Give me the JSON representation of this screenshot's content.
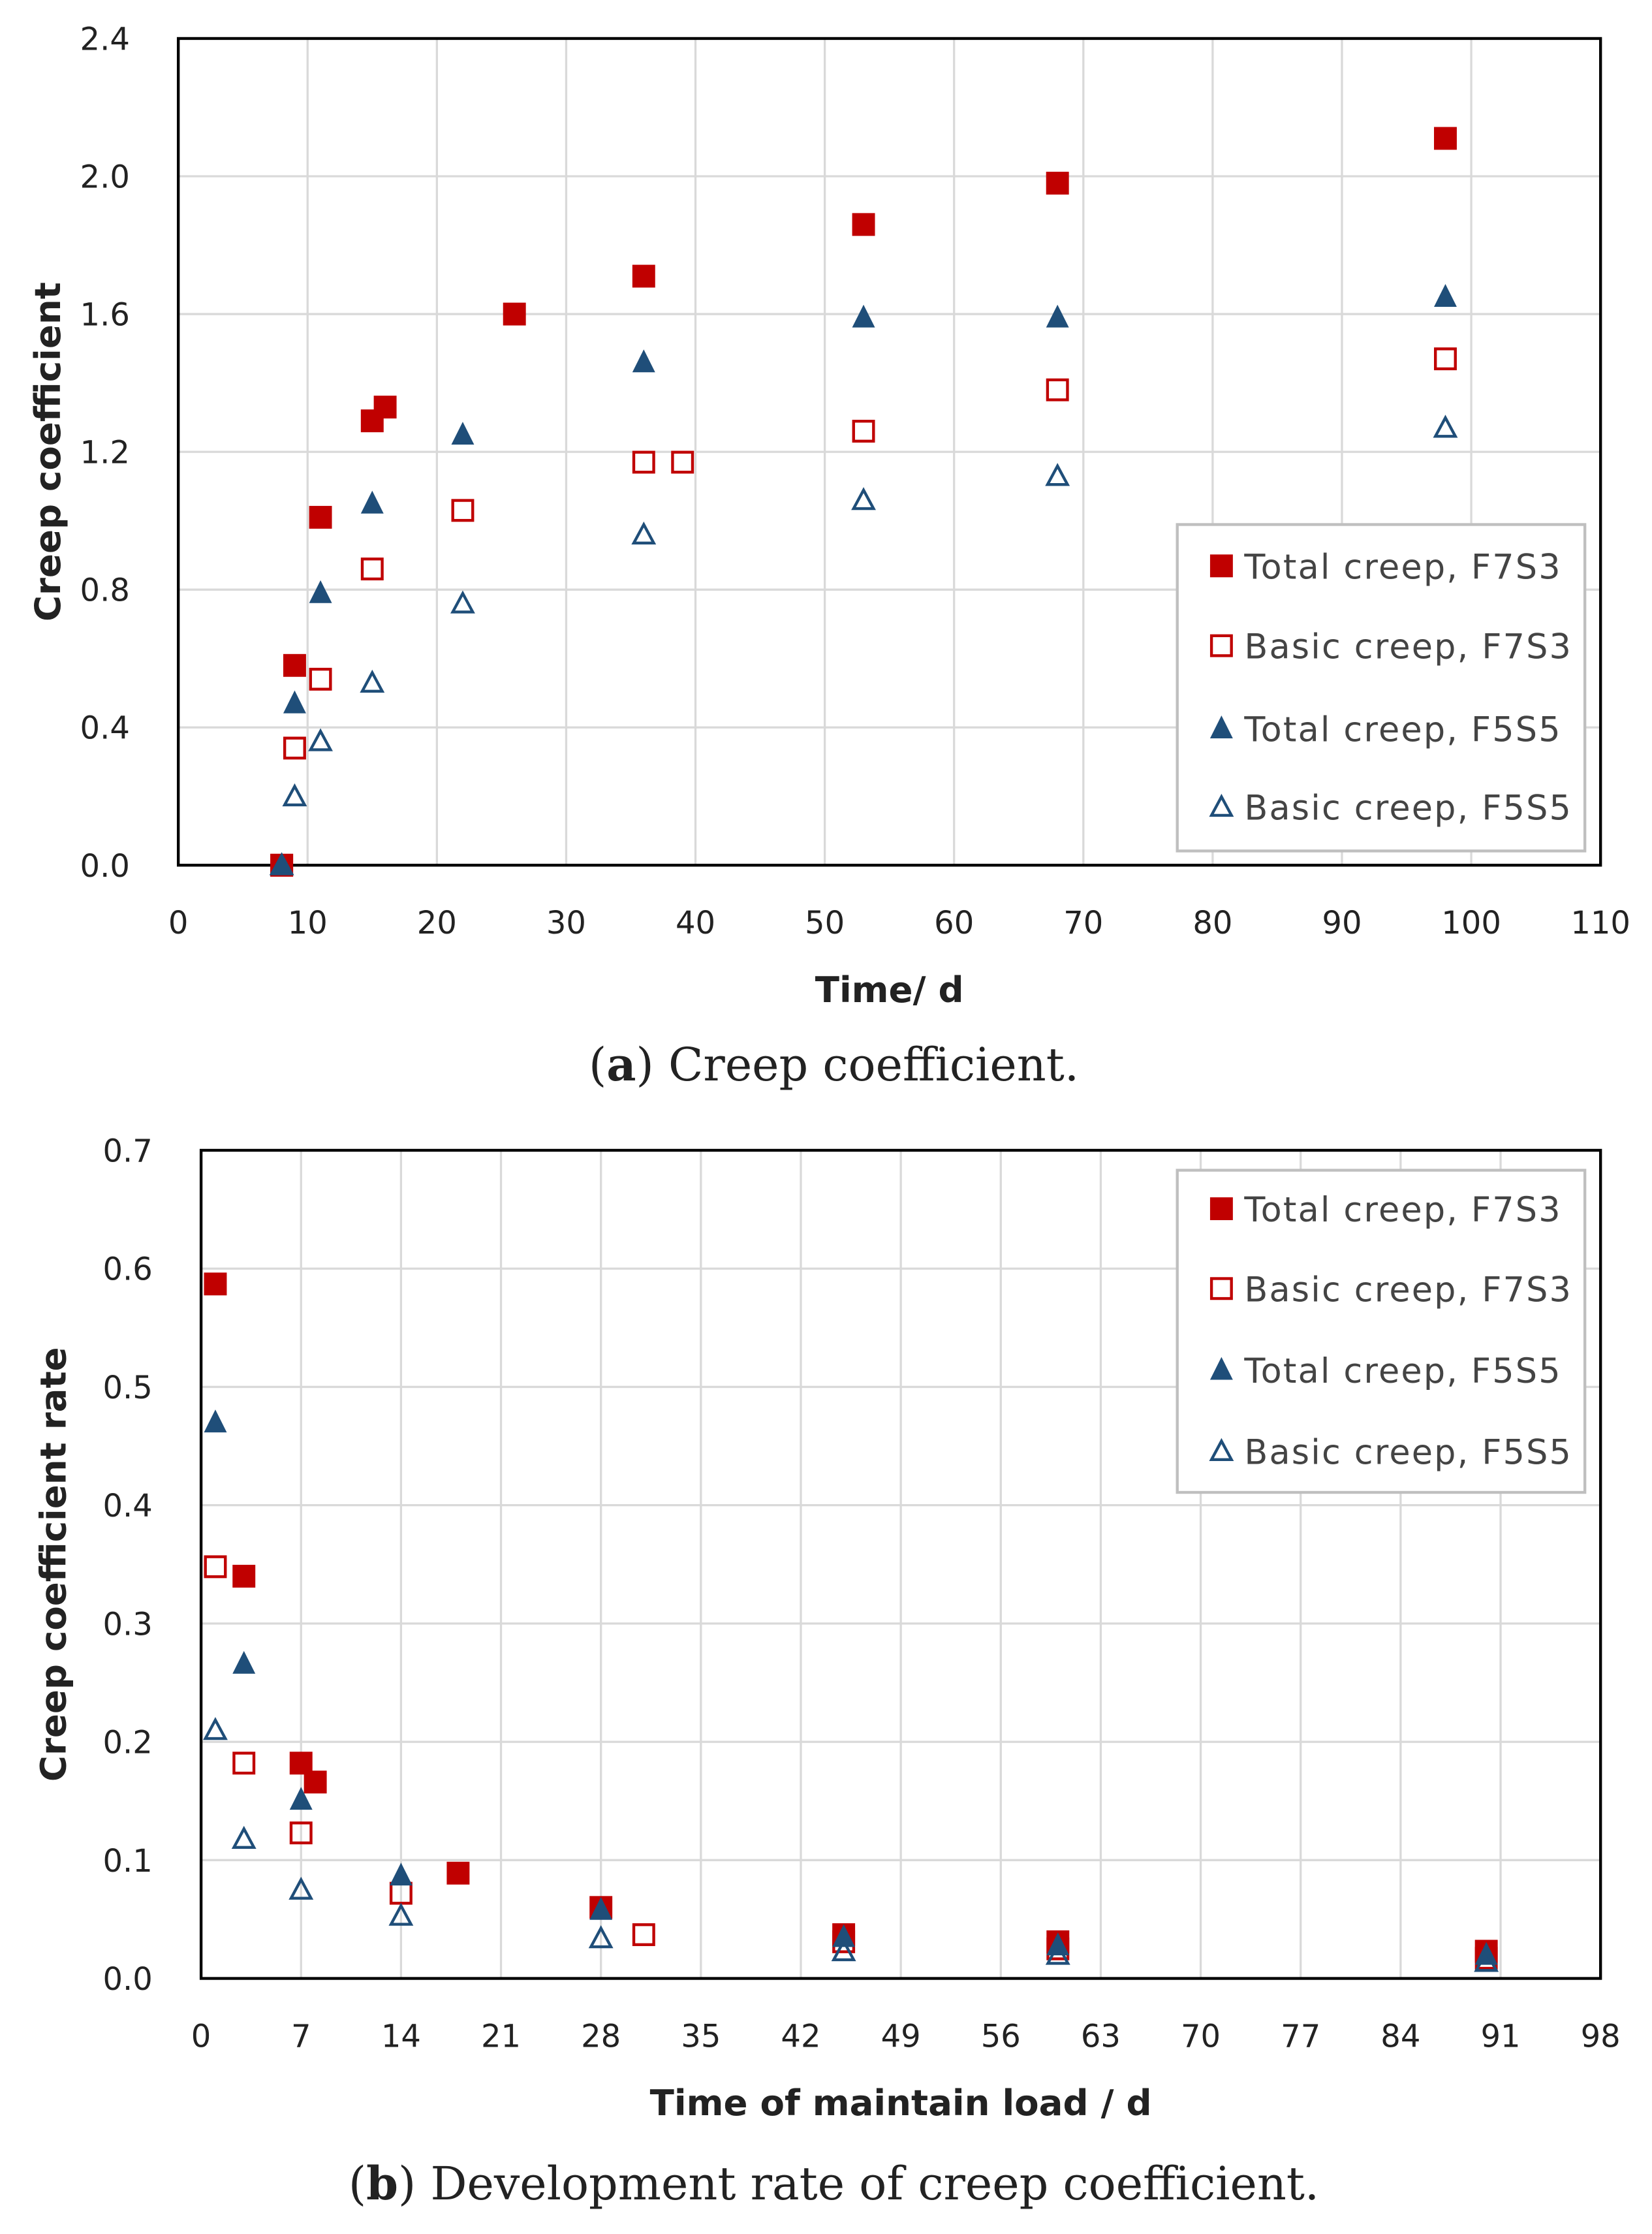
{
  "colors": {
    "red": "#C00000",
    "blue": "#1F4E79",
    "grid": "#D9D9D9"
  },
  "chart_data": [
    {
      "type": "scatter",
      "id": "a",
      "caption_label": "a",
      "caption_text": "Creep coefficient.",
      "xlabel": "Time/ d",
      "ylabel": "Creep coefficient",
      "xlim": [
        0,
        110
      ],
      "xticks": [
        0,
        10,
        20,
        30,
        40,
        50,
        60,
        70,
        80,
        90,
        100,
        110
      ],
      "ylim": [
        0,
        2.4
      ],
      "yticks": [
        "0.0",
        "0.4",
        "0.8",
        "1.2",
        "1.6",
        "2.0",
        "2.4"
      ],
      "grid": true,
      "legend_position": "right-lower",
      "series": [
        {
          "name": "Total creep, F7S3",
          "marker": "filled-square",
          "color": "red",
          "x": [
            8,
            9,
            11,
            15,
            16,
            26,
            36,
            53,
            68,
            98
          ],
          "y": [
            0,
            0.58,
            1.01,
            1.29,
            1.33,
            1.6,
            1.71,
            1.86,
            1.98,
            2.11
          ]
        },
        {
          "name": "Basic creep, F7S3",
          "marker": "open-square",
          "color": "red",
          "x": [
            8,
            9,
            11,
            15,
            22,
            36,
            39,
            53,
            68,
            98
          ],
          "y": [
            0,
            0.34,
            0.54,
            0.86,
            1.03,
            1.17,
            1.17,
            1.26,
            1.38,
            1.47
          ]
        },
        {
          "name": "Total creep, F5S5",
          "marker": "filled-triangle",
          "color": "blue",
          "x": [
            8,
            9,
            11,
            15,
            22,
            36,
            53,
            68,
            98
          ],
          "y": [
            0,
            0.47,
            0.79,
            1.05,
            1.25,
            1.46,
            1.59,
            1.59,
            1.65
          ]
        },
        {
          "name": "Basic creep, F5S5",
          "marker": "open-triangle",
          "color": "blue",
          "x": [
            8,
            9,
            11,
            15,
            22,
            36,
            53,
            68,
            98
          ],
          "y": [
            0,
            0.2,
            0.36,
            0.53,
            0.76,
            0.96,
            1.06,
            1.13,
            1.27
          ]
        }
      ]
    },
    {
      "type": "scatter",
      "id": "b",
      "caption_label": "b",
      "caption_text": "Development rate of creep coefficient.",
      "xlabel": "Time of maintain load / d",
      "ylabel": "Creep coefficient rate",
      "xlim": [
        0,
        98
      ],
      "xticks": [
        0,
        7,
        14,
        21,
        28,
        35,
        42,
        49,
        56,
        63,
        70,
        77,
        84,
        91,
        98
      ],
      "ylim": [
        0,
        0.7
      ],
      "yticks": [
        "0.0",
        "0.1",
        "0.2",
        "0.3",
        "0.4",
        "0.5",
        "0.6",
        "0.7"
      ],
      "grid": true,
      "legend_position": "top-right",
      "series": [
        {
          "name": "Total creep, F7S3",
          "marker": "filled-square",
          "color": "red",
          "x": [
            1,
            3,
            7,
            8,
            18,
            28,
            45,
            60,
            90
          ],
          "y": [
            0.587,
            0.34,
            0.182,
            0.166,
            0.089,
            0.06,
            0.037,
            0.031,
            0.023
          ]
        },
        {
          "name": "Basic creep, F7S3",
          "marker": "open-square",
          "color": "red",
          "x": [
            1,
            3,
            7,
            14,
            31,
            45,
            60,
            90
          ],
          "y": [
            0.348,
            0.182,
            0.123,
            0.072,
            0.037,
            0.031,
            0.025,
            0.017
          ]
        },
        {
          "name": "Total creep, F5S5",
          "marker": "filled-triangle",
          "color": "blue",
          "x": [
            1,
            3,
            7,
            14,
            28,
            45,
            60,
            90
          ],
          "y": [
            0.47,
            0.266,
            0.151,
            0.087,
            0.058,
            0.035,
            0.028,
            0.02
          ]
        },
        {
          "name": "Basic creep, F5S5",
          "marker": "open-triangle",
          "color": "blue",
          "x": [
            1,
            3,
            7,
            14,
            28,
            45,
            60,
            90
          ],
          "y": [
            0.21,
            0.118,
            0.075,
            0.053,
            0.034,
            0.023,
            0.02,
            0.014
          ]
        }
      ]
    }
  ]
}
